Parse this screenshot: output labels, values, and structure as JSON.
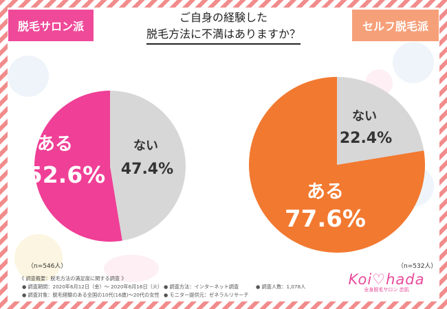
{
  "title_line1": "ご自身の経験した",
  "title_line2": "脱毛方法に不満はありますか？",
  "tag_left": "脱毛サロン派",
  "tag_right": "セルフ脱毛派",
  "left_n": "（n=546人）",
  "right_n": "（n=532人）",
  "footnotes": {
    "header": "《 調査概要：脱毛方法の満足度に関する調査 》",
    "period": "● 調査期間：2020年6月12日（金）～ 2020年6月16日（火）",
    "method": "● 調査方法：インターネット調査",
    "count": "● 調査人数：1,078人",
    "target": "● 調査対象：脱毛経験のある全国の10代(16歳)～20代の女性",
    "provider": "● モニター提供元：ゼネラルリサーチ"
  },
  "logo": {
    "main": "Koi♡hada",
    "sub": "全身脱毛サロン 恋肌"
  },
  "colors": {
    "pink": "#ef3f96",
    "orange": "#f27930",
    "gray": "#d7d7d7",
    "tag_left": "#ef4a99",
    "tag_right": "#f6a07a",
    "frame": "#f28c8c"
  },
  "chart_data": [
    {
      "type": "pie",
      "group": "脱毛サロン派",
      "n": 546,
      "slices": [
        {
          "label": "ある",
          "value": 52.6,
          "text": "52.6%",
          "color": "#ef3f96"
        },
        {
          "label": "ない",
          "value": 47.4,
          "text": "47.4%",
          "color": "#d7d7d7"
        }
      ]
    },
    {
      "type": "pie",
      "group": "セルフ脱毛派",
      "n": 532,
      "slices": [
        {
          "label": "ある",
          "value": 77.6,
          "text": "77.6%",
          "color": "#f27930"
        },
        {
          "label": "ない",
          "value": 22.4,
          "text": "22.4%",
          "color": "#d7d7d7"
        }
      ]
    }
  ]
}
